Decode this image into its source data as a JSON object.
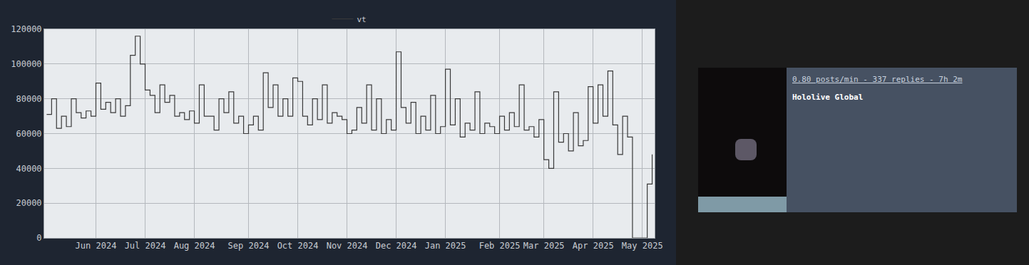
{
  "chart_data": {
    "type": "line",
    "categories": [
      null,
      null,
      null,
      null,
      null,
      null,
      null,
      null,
      null,
      null,
      "Jun 2024",
      null,
      null,
      null,
      null,
      null,
      null,
      null,
      null,
      null,
      "Jul 2024",
      null,
      null,
      null,
      null,
      null,
      null,
      null,
      null,
      null,
      "Aug 2024",
      null,
      null,
      null,
      null,
      null,
      null,
      null,
      null,
      null,
      null,
      "Sep 2024",
      null,
      null,
      null,
      null,
      null,
      null,
      null,
      null,
      null,
      "Oct 2024",
      null,
      null,
      null,
      null,
      null,
      null,
      null,
      null,
      null,
      "Nov 2024",
      null,
      null,
      null,
      null,
      null,
      null,
      null,
      null,
      null,
      "Dec 2024",
      null,
      null,
      null,
      null,
      null,
      null,
      null,
      null,
      null,
      "Jan 2025",
      null,
      null,
      null,
      null,
      null,
      null,
      null,
      null,
      null,
      null,
      "Feb 2025",
      null,
      null,
      null,
      null,
      null,
      null,
      null,
      null,
      "Mar 2025",
      null,
      null,
      null,
      null,
      null,
      null,
      null,
      null,
      null,
      "Apr 2025",
      null,
      null,
      null,
      null,
      null,
      null,
      null,
      null,
      null,
      "May 2025",
      null,
      null
    ],
    "series": [
      {
        "name": "vt",
        "color": "#3a3a3a",
        "values": [
          71000,
          80000,
          63000,
          70000,
          64000,
          80000,
          72000,
          69000,
          73000,
          70000,
          89000,
          74000,
          78000,
          72000,
          80000,
          70000,
          76000,
          105000,
          116000,
          100000,
          85000,
          82000,
          72000,
          88000,
          78000,
          82000,
          70000,
          72000,
          68000,
          73000,
          66000,
          88000,
          70000,
          70000,
          62000,
          80000,
          72000,
          84000,
          66000,
          70000,
          60000,
          65000,
          70000,
          62000,
          95000,
          75000,
          88000,
          70000,
          80000,
          70000,
          92000,
          90000,
          70000,
          65000,
          80000,
          68000,
          88000,
          66000,
          72000,
          70000,
          68000,
          60000,
          62000,
          75000,
          66000,
          88000,
          62000,
          80000,
          60000,
          68000,
          62000,
          107000,
          75000,
          66000,
          78000,
          60000,
          70000,
          62000,
          82000,
          60000,
          64000,
          97000,
          65000,
          80000,
          58000,
          66000,
          62000,
          84000,
          60000,
          66000,
          64000,
          60000,
          70000,
          62000,
          72000,
          64000,
          88000,
          62000,
          64000,
          58000,
          68000,
          45000,
          40000,
          84000,
          55000,
          60000,
          50000,
          72000,
          53000,
          56000,
          87000,
          66000,
          88000,
          70000,
          96000,
          65000,
          48000,
          70000,
          58000,
          0,
          0,
          0,
          31000,
          48000
        ]
      }
    ],
    "ylim": [
      0,
      120000
    ],
    "yticks": [
      0,
      20000,
      40000,
      60000,
      80000,
      100000,
      120000
    ],
    "grid": true,
    "legend": "top",
    "line_style": "step"
  },
  "panel": {
    "stats": "0.80 posts/min - 337 replies - 7h 2m",
    "title": "Hololive Global"
  }
}
